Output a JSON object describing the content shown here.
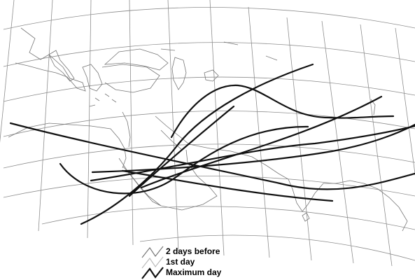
{
  "legend": {
    "items": [
      {
        "label": "2 days before",
        "color": "#777777",
        "weight": "thin"
      },
      {
        "label": "1st day",
        "color": "#bbbbbb",
        "weight": "thin"
      },
      {
        "label": "Maximum day",
        "color": "#111111",
        "weight": "thick"
      }
    ]
  },
  "colors": {
    "grid": "#8e8e8e",
    "coast": "#777777",
    "track": "#111111"
  }
}
